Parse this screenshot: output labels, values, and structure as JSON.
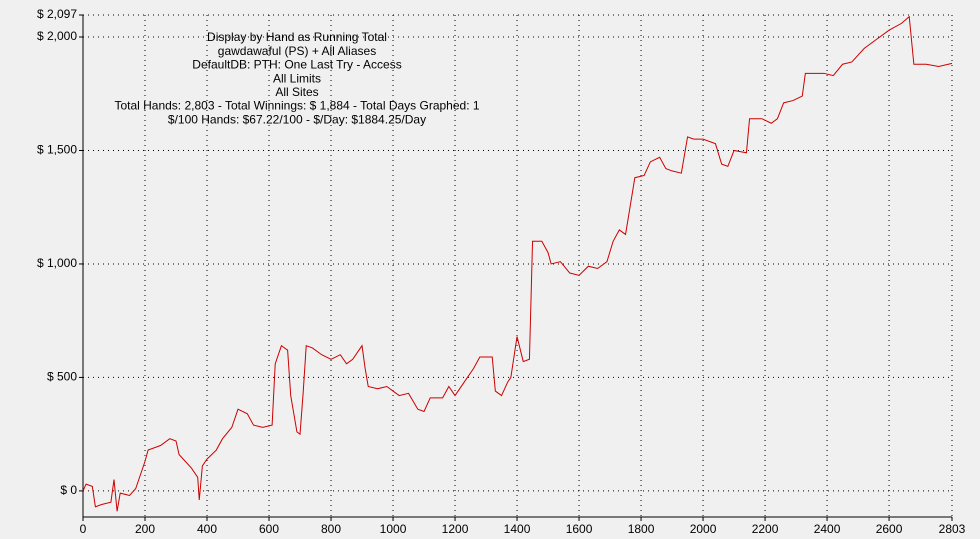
{
  "chart_data": {
    "type": "line",
    "title_lines": [
      "Display by Hand as Running Total",
      "gawdawaful (PS) + All Aliases",
      "DefaultDB: PTH: One Last Try - Access",
      "All Limits",
      "All Sites",
      "Total Hands: 2,803 - Total Winnings: $ 1,884 - Total Days Graphed: 1",
      "$/100 Hands: $67.22/100 - $/Day: $1884.25/Day"
    ],
    "x": [
      0,
      10,
      30,
      40,
      60,
      90,
      100,
      110,
      120,
      150,
      170,
      200,
      210,
      250,
      280,
      300,
      310,
      330,
      350,
      370,
      375,
      385,
      400,
      430,
      450,
      480,
      500,
      530,
      550,
      580,
      610,
      620,
      640,
      660,
      670,
      690,
      700,
      710,
      720,
      740,
      770,
      800,
      830,
      850,
      870,
      900,
      910,
      920,
      950,
      980,
      1000,
      1020,
      1050,
      1080,
      1100,
      1120,
      1160,
      1180,
      1200,
      1230,
      1260,
      1280,
      1320,
      1330,
      1350,
      1370,
      1380,
      1400,
      1420,
      1440,
      1450,
      1480,
      1500,
      1510,
      1540,
      1570,
      1600,
      1630,
      1660,
      1690,
      1710,
      1730,
      1750,
      1780,
      1810,
      1830,
      1860,
      1880,
      1900,
      1930,
      1950,
      1970,
      2000,
      2040,
      2060,
      2080,
      2100,
      2140,
      2150,
      2190,
      2220,
      2240,
      2260,
      2290,
      2320,
      2330,
      2390,
      2420,
      2450,
      2480,
      2520,
      2560,
      2600,
      2640,
      2665,
      2680,
      2720,
      2760,
      2803
    ],
    "series": [
      {
        "color": "#cc0000",
        "values": [
          0,
          30,
          20,
          -70,
          -60,
          -50,
          50,
          -90,
          -10,
          -20,
          10,
          130,
          180,
          200,
          230,
          220,
          160,
          130,
          100,
          60,
          -40,
          110,
          140,
          180,
          230,
          280,
          360,
          340,
          290,
          280,
          290,
          560,
          640,
          620,
          420,
          260,
          250,
          430,
          640,
          630,
          600,
          580,
          600,
          560,
          580,
          640,
          540,
          460,
          450,
          460,
          440,
          420,
          430,
          360,
          350,
          410,
          410,
          460,
          420,
          480,
          540,
          590,
          590,
          440,
          420,
          480,
          500,
          680,
          570,
          580,
          1100,
          1100,
          1050,
          1000,
          1010,
          960,
          950,
          990,
          980,
          1010,
          1100,
          1150,
          1130,
          1380,
          1390,
          1450,
          1470,
          1420,
          1410,
          1400,
          1560,
          1550,
          1550,
          1530,
          1440,
          1430,
          1500,
          1490,
          1640,
          1640,
          1620,
          1640,
          1710,
          1720,
          1740,
          1840,
          1840,
          1830,
          1880,
          1890,
          1950,
          1990,
          2030,
          2060,
          2090,
          1880,
          1880,
          1870,
          1884
        ]
      }
    ],
    "xlim": [
      0,
      2803
    ],
    "xticks": [
      0,
      200,
      400,
      600,
      800,
      1000,
      1200,
      1400,
      1600,
      1800,
      2000,
      2200,
      2400,
      2600,
      2803
    ],
    "ylim": [
      -115,
      2097
    ],
    "yticks": [
      {
        "value": 0,
        "label": "$ 0"
      },
      {
        "value": 500,
        "label": "$ 500"
      },
      {
        "value": 1000,
        "label": "$ 1,000"
      },
      {
        "value": 1500,
        "label": "$ 1,500"
      },
      {
        "value": 2000,
        "label": "$ 2,000"
      },
      {
        "value": 2097,
        "label": "$ 2,097"
      }
    ],
    "grid": true
  }
}
